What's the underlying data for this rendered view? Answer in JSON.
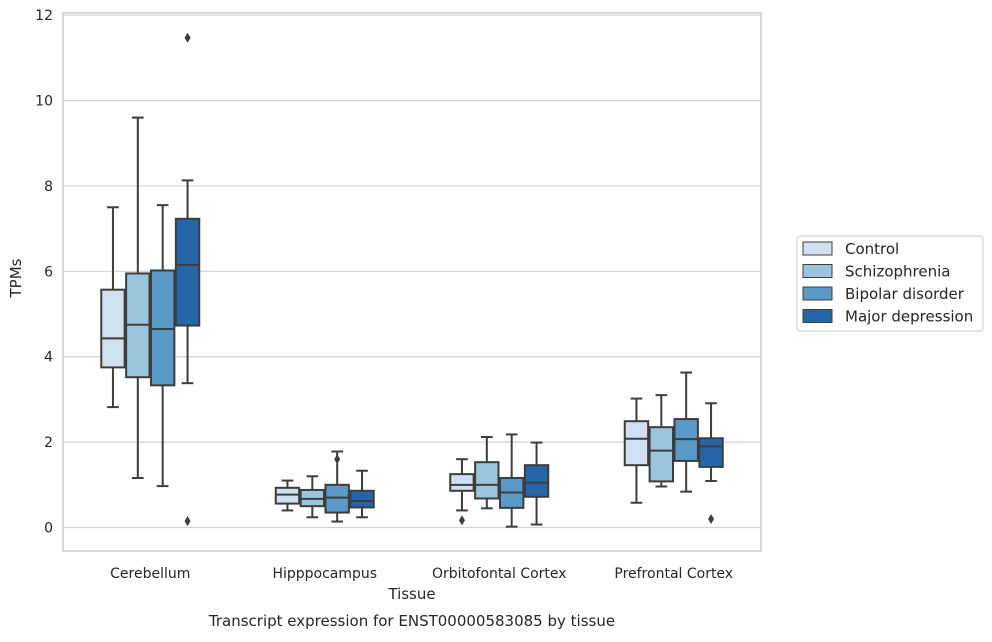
{
  "chart_data": {
    "type": "boxplot",
    "xlabel": "Tissue",
    "ylabel": "TPMs",
    "caption": "Transcript expression for ENST00000583085 by tissue",
    "ylim": [
      -0.55,
      12.05
    ],
    "yticks": [
      0,
      2,
      4,
      6,
      8,
      10,
      12
    ],
    "grid": true,
    "legend_position": "right",
    "categories": [
      "Cerebellum",
      "Hipppocampus",
      "Orbitofontal Cortex",
      "Prefrontal Cortex"
    ],
    "series": [
      {
        "name": "Control",
        "color": "#d0e0f1",
        "boxes": [
          {
            "whislo": 2.82,
            "q1": 3.75,
            "med": 4.43,
            "q3": 5.57,
            "whishi": 7.5,
            "fliers": []
          },
          {
            "whislo": 0.4,
            "q1": 0.56,
            "med": 0.77,
            "q3": 0.93,
            "whishi": 1.1,
            "fliers": []
          },
          {
            "whislo": 0.4,
            "q1": 0.86,
            "med": 1.0,
            "q3": 1.25,
            "whishi": 1.6,
            "fliers": [
              0.17
            ]
          },
          {
            "whislo": 0.58,
            "q1": 1.46,
            "med": 2.08,
            "q3": 2.49,
            "whishi": 3.02,
            "fliers": []
          }
        ]
      },
      {
        "name": "Schizophrenia",
        "color": "#9bc4de",
        "boxes": [
          {
            "whislo": 1.16,
            "q1": 3.52,
            "med": 4.75,
            "q3": 5.95,
            "whishi": 9.6,
            "fliers": []
          },
          {
            "whislo": 0.24,
            "q1": 0.5,
            "med": 0.67,
            "q3": 0.88,
            "whishi": 1.2,
            "fliers": []
          },
          {
            "whislo": 0.45,
            "q1": 0.68,
            "med": 1.0,
            "q3": 1.53,
            "whishi": 2.12,
            "fliers": []
          },
          {
            "whislo": 0.96,
            "q1": 1.08,
            "med": 1.8,
            "q3": 2.35,
            "whishi": 3.1,
            "fliers": []
          }
        ]
      },
      {
        "name": "Bipolar disorder",
        "color": "#5a9ac8",
        "boxes": [
          {
            "whislo": 0.97,
            "q1": 3.33,
            "med": 4.65,
            "q3": 6.02,
            "whishi": 7.55,
            "fliers": []
          },
          {
            "whislo": 0.14,
            "q1": 0.35,
            "med": 0.7,
            "q3": 1.0,
            "whishi": 1.78,
            "fliers": [
              1.6
            ]
          },
          {
            "whislo": 0.02,
            "q1": 0.46,
            "med": 0.82,
            "q3": 1.16,
            "whishi": 2.18,
            "fliers": []
          },
          {
            "whislo": 0.84,
            "q1": 1.56,
            "med": 2.07,
            "q3": 2.54,
            "whishi": 3.63,
            "fliers": []
          }
        ]
      },
      {
        "name": "Major depression",
        "color": "#2566a9",
        "boxes": [
          {
            "whislo": 3.38,
            "q1": 4.73,
            "med": 6.15,
            "q3": 7.23,
            "whishi": 8.13,
            "fliers": [
              11.47,
              0.15
            ]
          },
          {
            "whislo": 0.24,
            "q1": 0.47,
            "med": 0.62,
            "q3": 0.86,
            "whishi": 1.33,
            "fliers": []
          },
          {
            "whislo": 0.07,
            "q1": 0.72,
            "med": 1.05,
            "q3": 1.46,
            "whishi": 1.99,
            "fliers": []
          },
          {
            "whislo": 1.09,
            "q1": 1.42,
            "med": 1.9,
            "q3": 2.09,
            "whishi": 2.91,
            "fliers": [
              0.2
            ]
          }
        ]
      }
    ]
  }
}
